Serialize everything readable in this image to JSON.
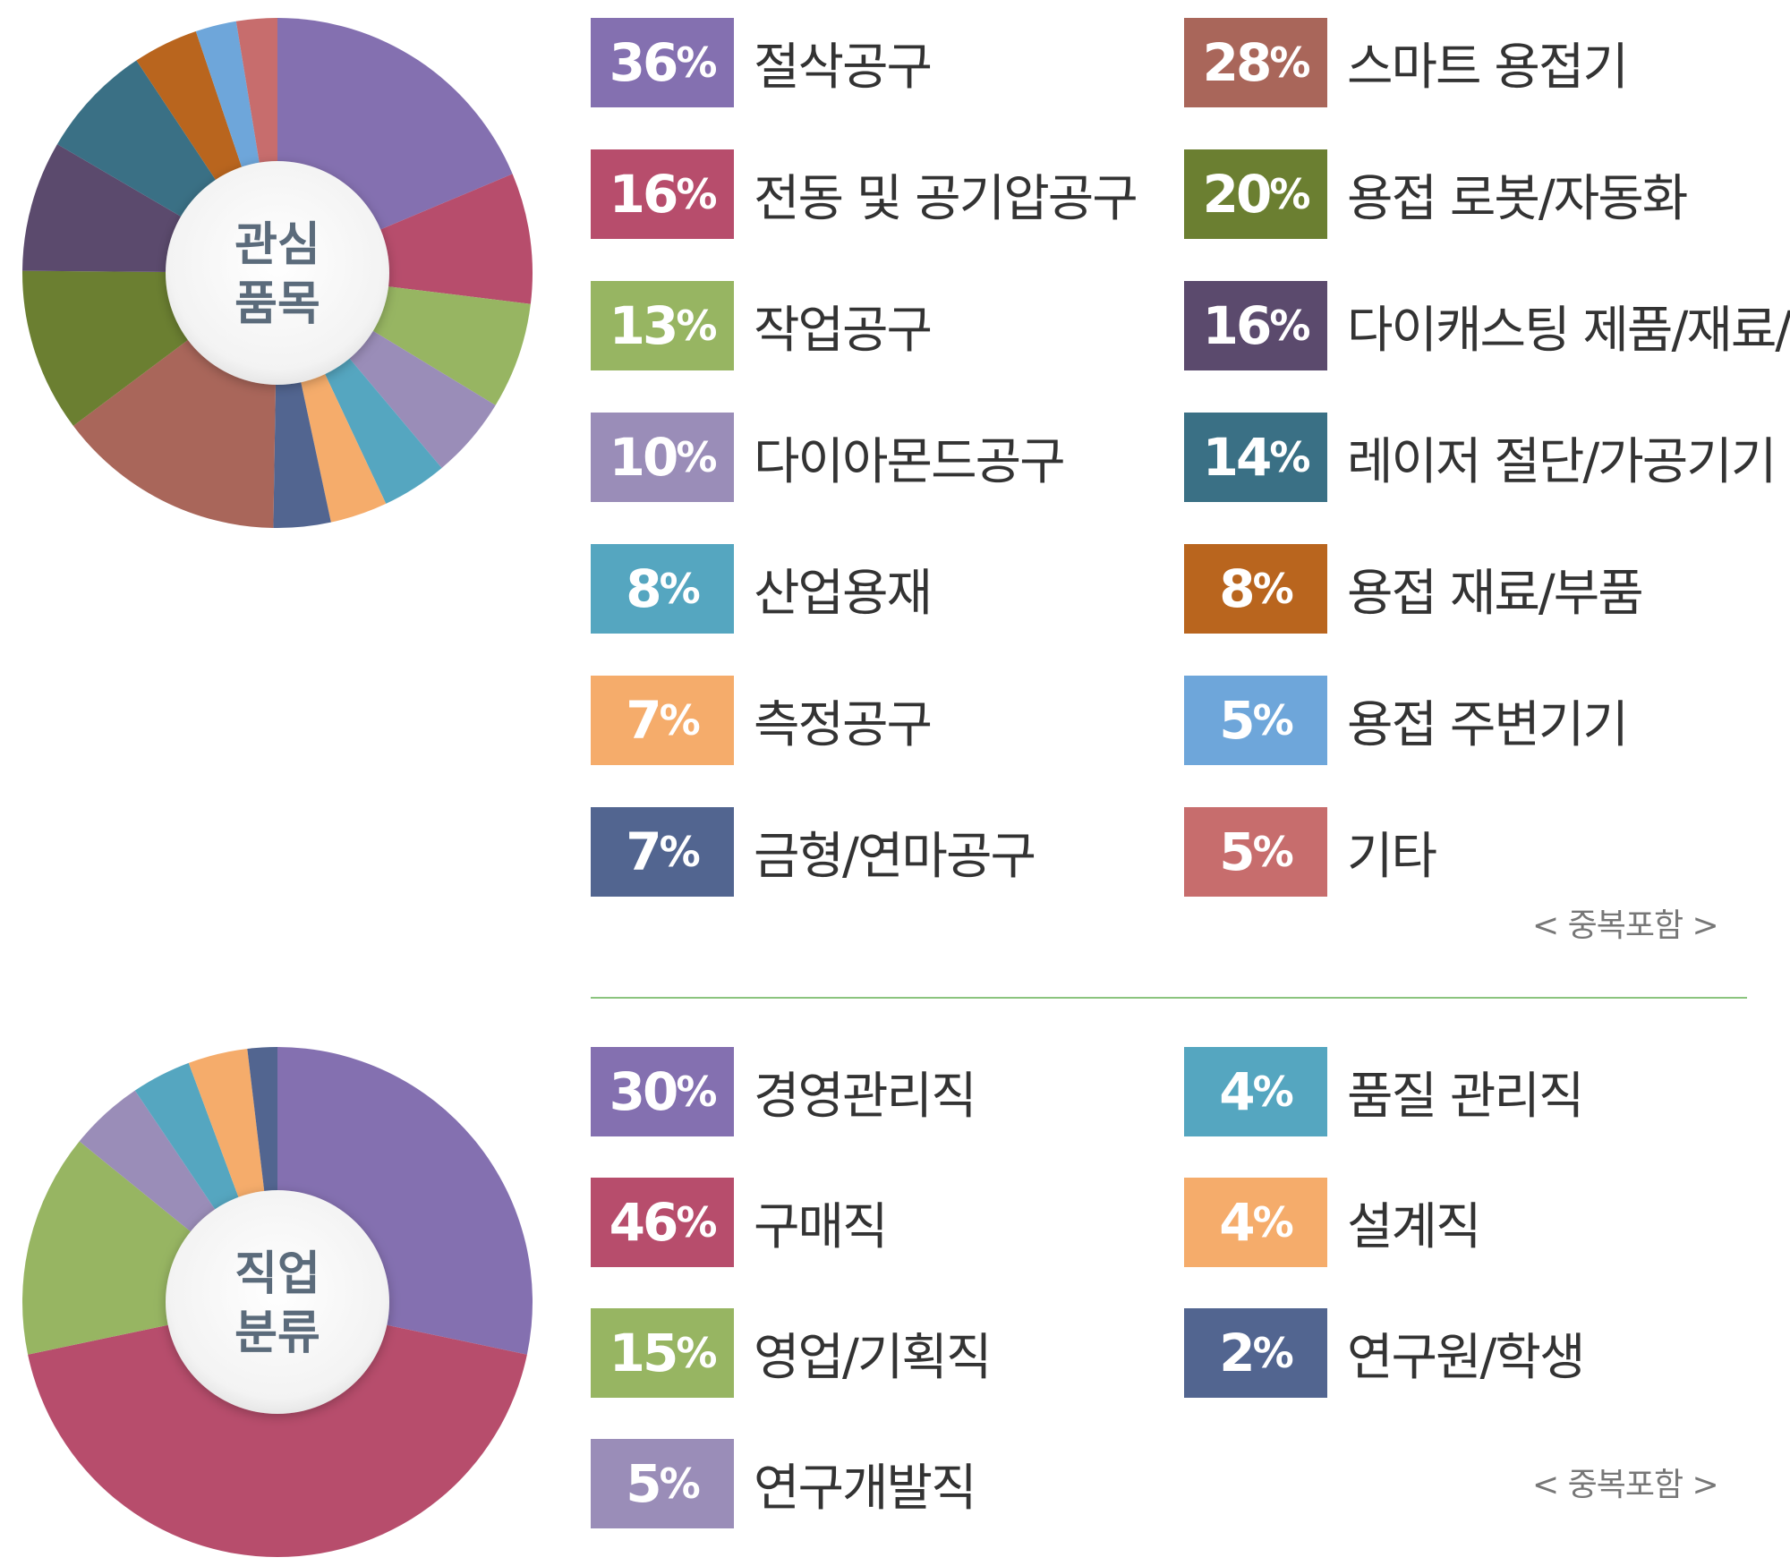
{
  "chart_data": [
    {
      "type": "pie",
      "center_label": [
        "관심",
        "품목"
      ],
      "note": "< 중복포함 >",
      "categories": [
        "절삭공구",
        "전동 및 공기압공구",
        "작업공구",
        "다이아몬드공구",
        "산업용재",
        "측정공구",
        "금형/연마공구",
        "스마트 용접기",
        "용접 로봇/자동화",
        "다이캐스팅 제품/재료/설비",
        "레이저 절단/가공기기",
        "용접 재료/부품",
        "용접 주변기기",
        "기타"
      ],
      "values": [
        36,
        16,
        13,
        10,
        8,
        7,
        7,
        28,
        20,
        16,
        14,
        8,
        5,
        5
      ],
      "colors": [
        "#8470b0",
        "#b74d6c",
        "#97b562",
        "#9a8db8",
        "#55a6c0",
        "#f5ac6b",
        "#526590",
        "#a9665a",
        "#6b7f31",
        "#5b4a6d",
        "#3a7085",
        "#b9651e",
        "#6ea6da",
        "#c76d6d"
      ]
    },
    {
      "type": "pie",
      "center_label": [
        "직업",
        "분류"
      ],
      "note": "< 중복포함 >",
      "categories": [
        "경영관리직",
        "구매직",
        "영업/기획직",
        "연구개발직",
        "품질 관리직",
        "설계직",
        "연구원/학생"
      ],
      "values": [
        30,
        46,
        15,
        5,
        4,
        4,
        2
      ],
      "colors": [
        "#8470b0",
        "#b74d6c",
        "#97b562",
        "#9a8db8",
        "#55a6c0",
        "#f5ac6b",
        "#526590"
      ]
    }
  ]
}
